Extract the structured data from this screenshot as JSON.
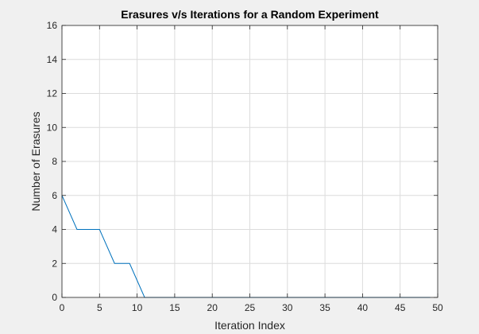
{
  "chart_data": {
    "type": "line",
    "title": "Erasures v/s Iterations for a Random Experiment",
    "xlabel": "Iteration Index",
    "ylabel": "Number of Erasures",
    "xlim": [
      0,
      50
    ],
    "ylim": [
      0,
      16
    ],
    "xticks": [
      0,
      5,
      10,
      15,
      20,
      25,
      30,
      35,
      40,
      45,
      50
    ],
    "yticks": [
      0,
      2,
      4,
      6,
      8,
      10,
      12,
      14,
      16
    ],
    "grid": true,
    "series": [
      {
        "color": "#0072bd",
        "x": [
          0,
          2,
          3,
          4,
          5,
          7,
          8,
          9,
          11,
          12,
          13,
          14,
          15,
          16,
          17,
          18,
          19,
          20,
          21,
          22,
          23,
          24,
          25,
          26,
          27,
          28,
          29,
          30,
          31,
          32,
          33,
          34,
          35,
          36,
          37,
          38,
          39,
          40,
          41,
          42,
          43,
          44,
          45,
          46,
          47,
          48,
          49
        ],
        "y": [
          6,
          4,
          4,
          4,
          4,
          2,
          2,
          2,
          0,
          0,
          0,
          0,
          0,
          0,
          0,
          0,
          0,
          0,
          0,
          0,
          0,
          0,
          0,
          0,
          0,
          0,
          0,
          0,
          0,
          0,
          0,
          0,
          0,
          0,
          0,
          0,
          0,
          0,
          0,
          0,
          0,
          0,
          0,
          0,
          0,
          0,
          0
        ]
      }
    ]
  }
}
